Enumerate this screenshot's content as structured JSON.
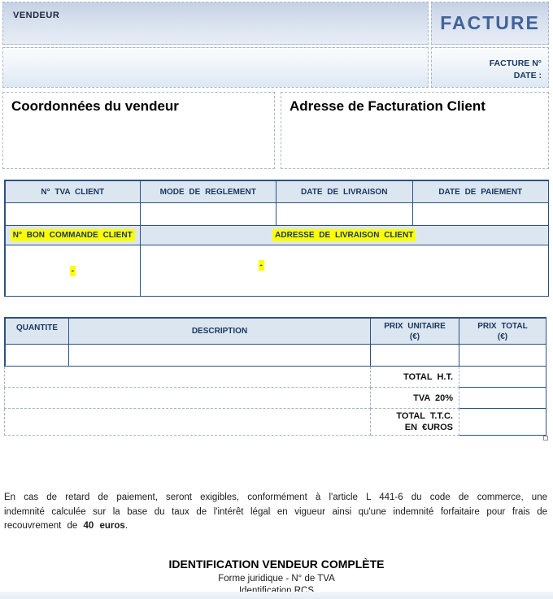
{
  "header": {
    "vendor_label": "VENDEUR",
    "invoice_title": "FACTURE",
    "invoice_number_label": "FACTURE N°",
    "date_label": "DATE :"
  },
  "addresses": {
    "seller_title": "Coordonnées du vendeur",
    "billing_title": "Adresse de Facturation Client"
  },
  "info_table": {
    "headers": [
      "N° TVA CLIENT",
      "MODE DE REGLEMENT",
      "DATE DE LIVRAISON",
      "DATE DE PAIEMENT"
    ],
    "values": [
      "",
      "",
      "",
      ""
    ],
    "order_header": "N° BON COMMANDE CLIENT",
    "delivery_header": "ADRESSE DE LIVRAISON CLIENT",
    "order_value": "-",
    "delivery_value": "-"
  },
  "items_table": {
    "quantity_header": "QUANTITE",
    "description_header": "DESCRIPTION",
    "unit_price_header_line1": "PRIX UNITAIRE",
    "unit_price_header_line2": "(€)",
    "total_price_header_line1": "PRIX TOTAL",
    "total_price_header_line2": "(€)",
    "row": {
      "quantity": "",
      "description": "",
      "unit_price": "",
      "total_price": ""
    },
    "totals": [
      {
        "label": "TOTAL H.T.",
        "label_line2": "",
        "value": ""
      },
      {
        "label": "TVA 20%",
        "label_line2": "",
        "value": ""
      },
      {
        "label": "TOTAL T.T.C.",
        "label_line2": "EN €UROS",
        "value": ""
      }
    ]
  },
  "legal": {
    "text_before": "En cas de retard de paiement, seront exigibles, conformément à l'article L 441-6 du code de commerce, une indemnité calculée sur la base du taux de l'intérêt légal en vigueur ainsi qu'une indemnité forfaitaire pour frais de recouvrement de ",
    "bold_text": "40 euros",
    "text_after": "."
  },
  "footer": {
    "title": "IDENTIFICATION VENDEUR COMPLÈTE",
    "line1": "Forme juridique - N° de TVA",
    "line2": "Identification RCS"
  },
  "colors": {
    "accent_border": "#2e5181",
    "table_header_bg": "#dce6f1",
    "header_text": "#17375e",
    "highlight": "#ffff00",
    "title_blue": "#41639a"
  }
}
